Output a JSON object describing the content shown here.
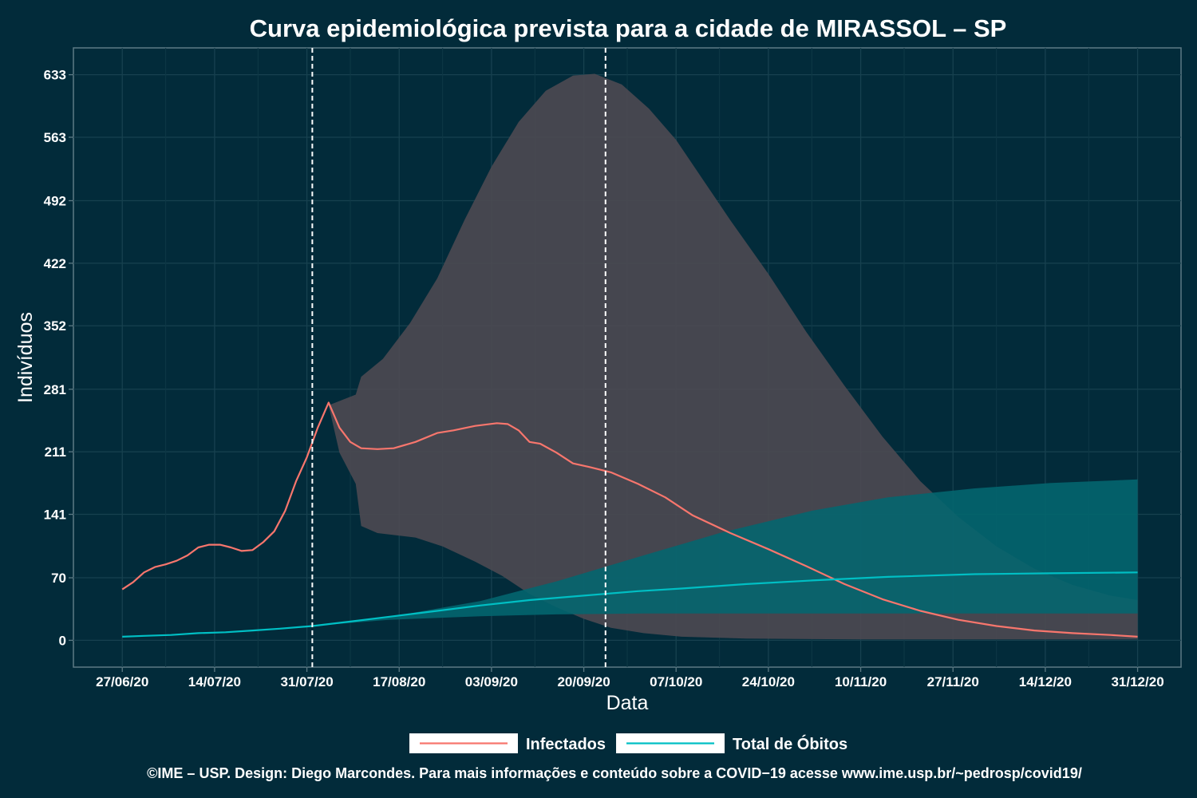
{
  "chart_data": {
    "type": "line",
    "title": "Curva epidemiológica prevista para a cidade de MIRASSOL – SP",
    "xlabel": "Data",
    "ylabel": "Indivíduos",
    "caption": "©IME – USP. Design: Diego Marcondes. Para mais informações e conteúdo sobre a COVID−19 acesse www.ime.usp.br/~pedrosp/covid19/",
    "x_ticks": [
      "27/06/20",
      "14/07/20",
      "31/07/20",
      "17/08/20",
      "03/09/20",
      "20/09/20",
      "07/10/20",
      "24/10/20",
      "10/11/20",
      "27/11/20",
      "14/12/20",
      "31/12/20"
    ],
    "y_ticks": [
      0,
      70,
      141,
      211,
      281,
      352,
      422,
      492,
      563,
      633
    ],
    "xlim": [
      "2020-06-18",
      "2021-01-08"
    ],
    "ylim": [
      -30,
      663
    ],
    "grid": true,
    "legend_position": "bottom",
    "vlines": [
      "2020-08-01",
      "2020-09-24"
    ],
    "series": [
      {
        "name": "Infectados",
        "color": "#f8766d",
        "points": [
          [
            "2020-06-27",
            57
          ],
          [
            "2020-06-29",
            65
          ],
          [
            "2020-07-01",
            76
          ],
          [
            "2020-07-03",
            82
          ],
          [
            "2020-07-05",
            85
          ],
          [
            "2020-07-07",
            89
          ],
          [
            "2020-07-09",
            95
          ],
          [
            "2020-07-11",
            104
          ],
          [
            "2020-07-13",
            107
          ],
          [
            "2020-07-15",
            107
          ],
          [
            "2020-07-17",
            104
          ],
          [
            "2020-07-19",
            100
          ],
          [
            "2020-07-21",
            101
          ],
          [
            "2020-07-23",
            110
          ],
          [
            "2020-07-25",
            122
          ],
          [
            "2020-07-27",
            145
          ],
          [
            "2020-07-29",
            178
          ],
          [
            "2020-07-31",
            205
          ],
          [
            "2020-08-02",
            238
          ],
          [
            "2020-08-04",
            266
          ],
          [
            "2020-08-06",
            238
          ],
          [
            "2020-08-08",
            222
          ],
          [
            "2020-08-10",
            215
          ],
          [
            "2020-08-13",
            214
          ],
          [
            "2020-08-16",
            215
          ],
          [
            "2020-08-20",
            222
          ],
          [
            "2020-08-24",
            232
          ],
          [
            "2020-08-27",
            235
          ],
          [
            "2020-08-31",
            240
          ],
          [
            "2020-09-04",
            243
          ],
          [
            "2020-09-06",
            242
          ],
          [
            "2020-09-08",
            235
          ],
          [
            "2020-09-10",
            222
          ],
          [
            "2020-09-12",
            220
          ],
          [
            "2020-09-15",
            210
          ],
          [
            "2020-09-18",
            198
          ],
          [
            "2020-09-21",
            194
          ],
          [
            "2020-09-25",
            188
          ],
          [
            "2020-09-30",
            175
          ],
          [
            "2020-10-05",
            160
          ],
          [
            "2020-10-10",
            140
          ],
          [
            "2020-10-17",
            120
          ],
          [
            "2020-10-24",
            102
          ],
          [
            "2020-10-31",
            83
          ],
          [
            "2020-11-07",
            63
          ],
          [
            "2020-11-14",
            46
          ],
          [
            "2020-11-21",
            33
          ],
          [
            "2020-11-28",
            23
          ],
          [
            "2020-12-05",
            16
          ],
          [
            "2020-12-12",
            11
          ],
          [
            "2020-12-19",
            8
          ],
          [
            "2020-12-26",
            6
          ],
          [
            "2020-12-31",
            4
          ]
        ]
      },
      {
        "name": "Total de Óbitos",
        "color": "#00bfc4",
        "points": [
          [
            "2020-06-27",
            4
          ],
          [
            "2020-07-01",
            5
          ],
          [
            "2020-07-06",
            6
          ],
          [
            "2020-07-11",
            8
          ],
          [
            "2020-07-16",
            9
          ],
          [
            "2020-07-21",
            11
          ],
          [
            "2020-07-26",
            13
          ],
          [
            "2020-08-01",
            16
          ],
          [
            "2020-08-08",
            21
          ],
          [
            "2020-08-16",
            27
          ],
          [
            "2020-08-24",
            33
          ],
          [
            "2020-09-01",
            39
          ],
          [
            "2020-09-10",
            45
          ],
          [
            "2020-09-20",
            50
          ],
          [
            "2020-09-30",
            55
          ],
          [
            "2020-10-08",
            58
          ],
          [
            "2020-10-20",
            63
          ],
          [
            "2020-11-01",
            67
          ],
          [
            "2020-11-15",
            71
          ],
          [
            "2020-12-01",
            74
          ],
          [
            "2020-12-15",
            75
          ],
          [
            "2020-12-31",
            76
          ]
        ]
      }
    ],
    "bands": [
      {
        "series": "Infectados",
        "color": "#4f4a52",
        "upper": [
          [
            "2020-08-04",
            263
          ],
          [
            "2020-08-09",
            275
          ],
          [
            "2020-08-10",
            295
          ],
          [
            "2020-08-14",
            315
          ],
          [
            "2020-08-19",
            355
          ],
          [
            "2020-08-24",
            405
          ],
          [
            "2020-08-29",
            470
          ],
          [
            "2020-09-03",
            530
          ],
          [
            "2020-09-08",
            580
          ],
          [
            "2020-09-13",
            615
          ],
          [
            "2020-09-18",
            632
          ],
          [
            "2020-09-22",
            634
          ],
          [
            "2020-09-27",
            622
          ],
          [
            "2020-10-02",
            595
          ],
          [
            "2020-10-07",
            560
          ],
          [
            "2020-10-12",
            515
          ],
          [
            "2020-10-17",
            470
          ],
          [
            "2020-10-24",
            410
          ],
          [
            "2020-10-31",
            345
          ],
          [
            "2020-11-07",
            285
          ],
          [
            "2020-11-14",
            228
          ],
          [
            "2020-11-21",
            178
          ],
          [
            "2020-11-28",
            138
          ],
          [
            "2020-12-05",
            105
          ],
          [
            "2020-12-12",
            80
          ],
          [
            "2020-12-19",
            62
          ],
          [
            "2020-12-26",
            50
          ],
          [
            "2020-12-31",
            45
          ]
        ],
        "lower": [
          [
            "2020-08-04",
            263
          ],
          [
            "2020-08-06",
            210
          ],
          [
            "2020-08-09",
            175
          ],
          [
            "2020-08-10",
            128
          ],
          [
            "2020-08-13",
            120
          ],
          [
            "2020-08-20",
            115
          ],
          [
            "2020-08-25",
            105
          ],
          [
            "2020-08-31",
            88
          ],
          [
            "2020-09-05",
            72
          ],
          [
            "2020-09-10",
            52
          ],
          [
            "2020-09-15",
            37
          ],
          [
            "2020-09-20",
            24
          ],
          [
            "2020-09-25",
            14
          ],
          [
            "2020-10-01",
            8
          ],
          [
            "2020-10-08",
            4
          ],
          [
            "2020-10-20",
            2
          ],
          [
            "2020-11-10",
            1
          ],
          [
            "2020-12-31",
            1
          ]
        ]
      },
      {
        "series": "Total de Óbitos",
        "color": "#03676f",
        "upper": [
          [
            "2020-08-01",
            16
          ],
          [
            "2020-08-15",
            26
          ],
          [
            "2020-09-01",
            44
          ],
          [
            "2020-09-15",
            66
          ],
          [
            "2020-10-01",
            95
          ],
          [
            "2020-10-15",
            120
          ],
          [
            "2020-11-01",
            145
          ],
          [
            "2020-11-15",
            160
          ],
          [
            "2020-12-01",
            170
          ],
          [
            "2020-12-15",
            176
          ],
          [
            "2020-12-31",
            180
          ]
        ],
        "lower": [
          [
            "2020-08-01",
            16
          ],
          [
            "2020-08-15",
            23
          ],
          [
            "2020-09-01",
            27
          ],
          [
            "2020-09-15",
            29
          ],
          [
            "2020-10-01",
            30
          ],
          [
            "2020-10-15",
            30
          ],
          [
            "2020-11-15",
            30
          ],
          [
            "2020-12-31",
            30
          ]
        ]
      }
    ]
  }
}
